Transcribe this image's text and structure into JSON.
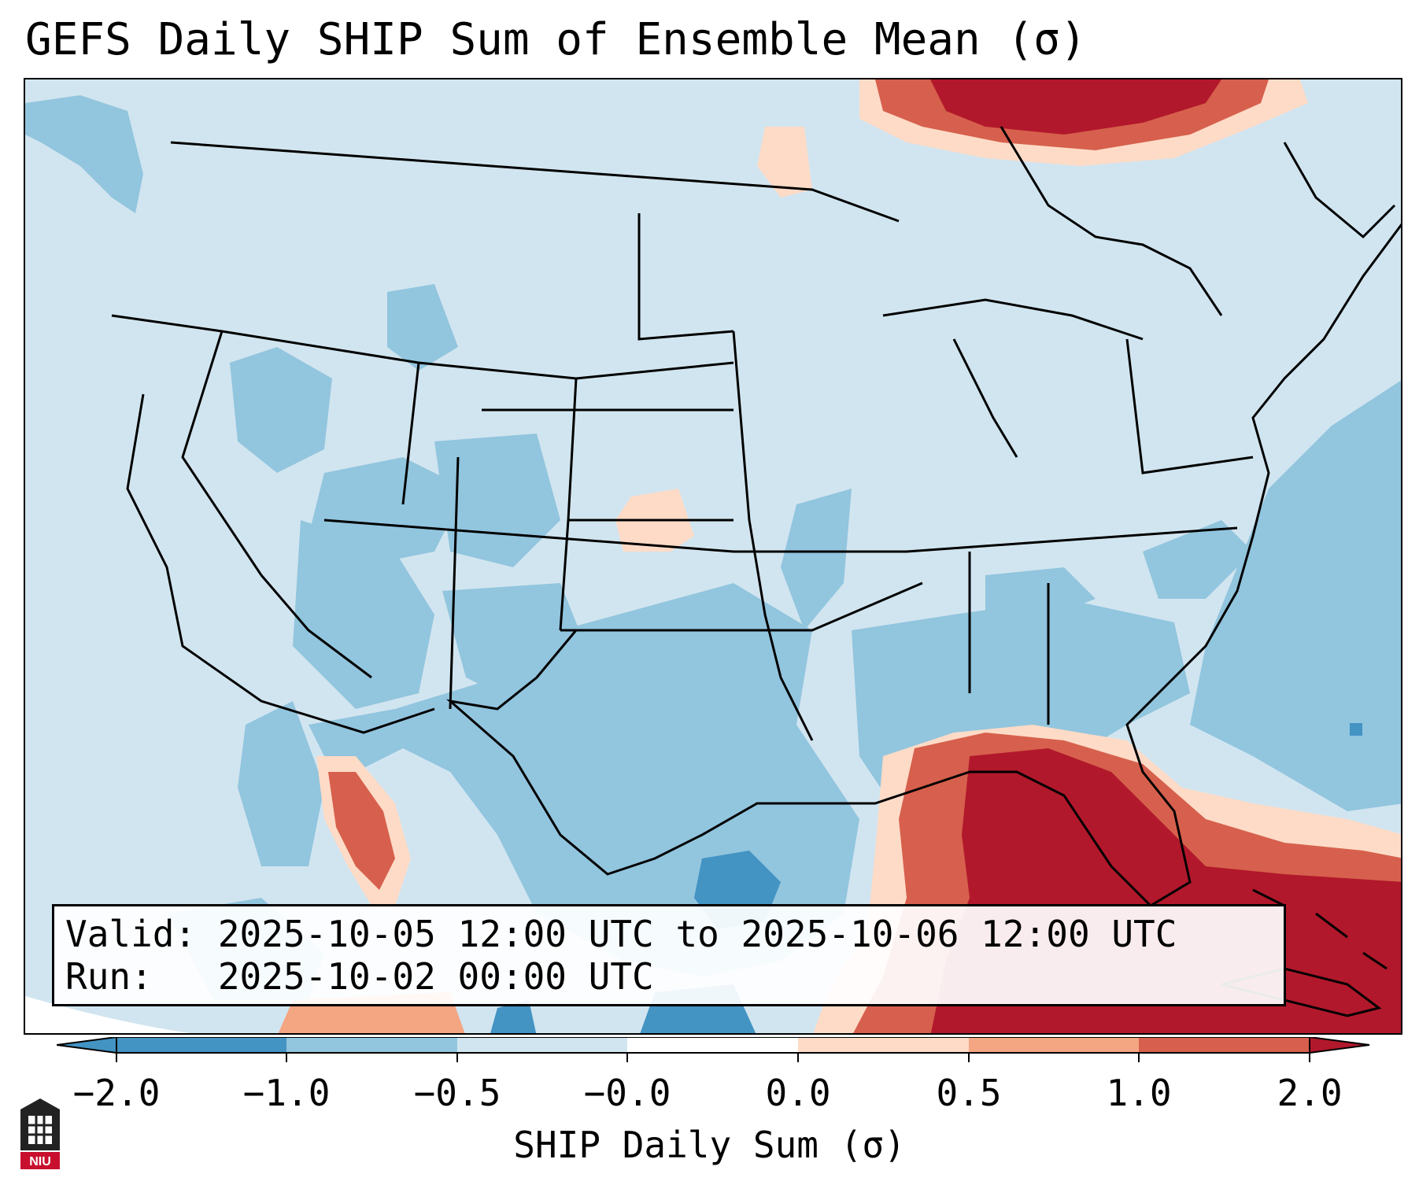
{
  "title": "GEFS Daily SHIP Sum of Ensemble Mean (σ)",
  "info": {
    "valid_line": "Valid: 2025-10-05 12:00 UTC to 2025-10-06 12:00 UTC",
    "run_line": "Run:   2025-10-02 00:00 UTC"
  },
  "colorbar": {
    "label": "SHIP Daily Sum (σ)",
    "ticks": [
      "−2.0",
      "−1.0",
      "−0.5",
      "−0.0",
      "0.0",
      "0.5",
      "1.0",
      "2.0"
    ],
    "colors": [
      "#4393c3",
      "#92c5de",
      "#d1e5f0",
      "#ffffff",
      "#fddbc7",
      "#f4a582",
      "#d6604d",
      "#b2182b"
    ],
    "extend": "both"
  },
  "map": {
    "region": "Continental United States",
    "regions_depicted": [
      "Gulf of Mexico",
      "Florida",
      "Texas",
      "Western Atlantic",
      "Southern Canada"
    ]
  },
  "logo": {
    "text": "NIU",
    "color": "#c8102e"
  }
}
